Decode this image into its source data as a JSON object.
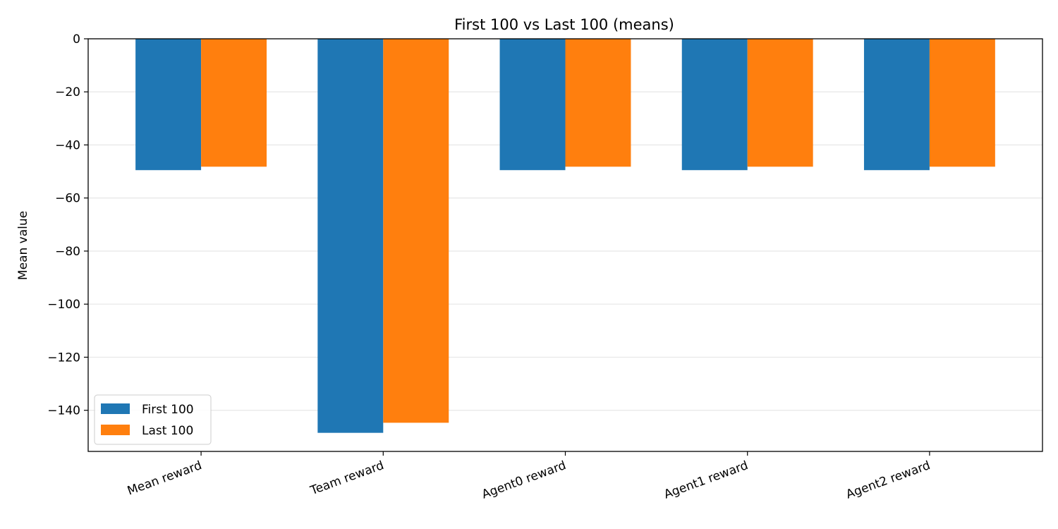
{
  "chart_data": {
    "type": "bar",
    "title": "First 100 vs Last 100 (means)",
    "xlabel": "",
    "ylabel": "Mean value",
    "categories": [
      "Mean reward",
      "Team reward",
      "Agent0 reward",
      "Agent1 reward",
      "Agent2 reward"
    ],
    "series": [
      {
        "name": "First 100",
        "color": "#1f77b4",
        "values": [
          -49.5,
          -148.5,
          -49.5,
          -49.5,
          -49.5
        ]
      },
      {
        "name": "Last 100",
        "color": "#ff7f0e",
        "values": [
          -48.2,
          -144.7,
          -48.2,
          -48.2,
          -48.2
        ]
      }
    ],
    "ylim": [
      -155.5,
      0
    ],
    "yticks": [
      0,
      -20,
      -40,
      -60,
      -80,
      -100,
      -120,
      -140
    ],
    "ytick_labels": [
      "0",
      "−20",
      "−40",
      "−60",
      "−80",
      "−100",
      "−120",
      "−140"
    ],
    "grid": "horizontal",
    "legend_position": "lower-left"
  }
}
